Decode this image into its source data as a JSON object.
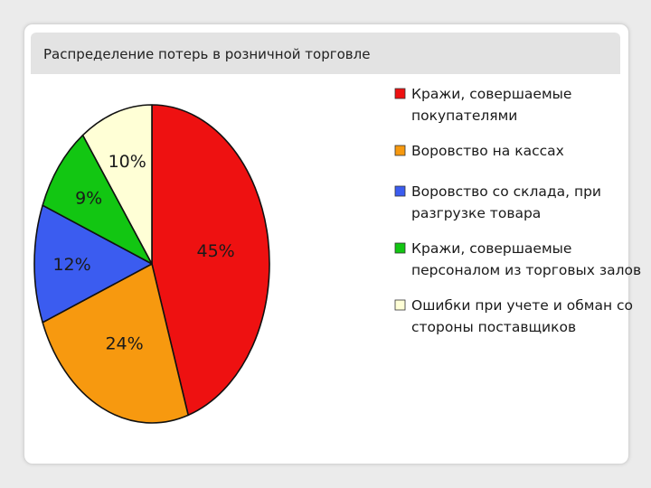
{
  "slide": {
    "title": "Распределение потерь в розничной торговле"
  },
  "chart_data": {
    "type": "pie",
    "title": "Распределение потерь в розничной торговле",
    "slices": [
      {
        "label": "Кражи, совершаемые покупателями",
        "label_lines": [
          "Кражи, совершаемые",
          "покупателями"
        ],
        "value": 45,
        "value_label": "45%",
        "color": "#ee1111"
      },
      {
        "label": "Воровство на кассах",
        "label_lines": [
          "Воровство на кассах"
        ],
        "value": 24,
        "value_label": "24%",
        "color": "#f7990f"
      },
      {
        "label": "Воровство со склада, при разгрузке товара",
        "label_lines": [
          "Воровство со склада, при",
          "разгрузке товара"
        ],
        "value": 12,
        "value_label": "12%",
        "color": "#3b5cf0"
      },
      {
        "label": "Кражи, совершаемые персоналом из торговых залов",
        "label_lines": [
          "Кражи, совершаемые",
          "персоналом из торговых залов"
        ],
        "value": 9,
        "value_label": "9%",
        "color": "#12c612"
      },
      {
        "label": "Ошибки при учете и обман со стороны поставщиков",
        "label_lines": [
          "Ошибки при учете и обман со",
          "стороны поставщиков"
        ],
        "value": 10,
        "value_label": "10%",
        "color": "#ffffd6"
      }
    ],
    "legend_position": "right",
    "start_angle_deg": 0,
    "direction": "clockwise"
  }
}
